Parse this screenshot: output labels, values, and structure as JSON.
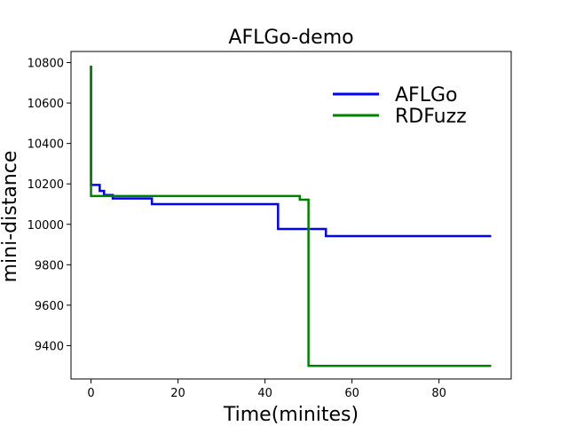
{
  "chart_data": {
    "type": "line",
    "title": "AFLGo-demo",
    "xlabel": "Time(minites)",
    "ylabel": "mini-distance",
    "xlim": [
      -4.6,
      96.6
    ],
    "ylim": [
      9235,
      10855
    ],
    "xticks": [
      0,
      20,
      40,
      60,
      80
    ],
    "yticks": [
      9400,
      9600,
      9800,
      10000,
      10200,
      10400,
      10600,
      10800
    ],
    "grid": false,
    "legend_position": "upper-right",
    "series": [
      {
        "name": "AFLGo",
        "color": "#0000ff",
        "step": true,
        "x": [
          0,
          0,
          2,
          3,
          5,
          14,
          43,
          54,
          92
        ],
        "y": [
          10785,
          10195,
          10165,
          10145,
          10128,
          10100,
          9977,
          9942,
          9942
        ]
      },
      {
        "name": "RDFuzz",
        "color": "#008000",
        "step": true,
        "x": [
          0,
          0,
          48,
          50,
          92
        ],
        "y": [
          10785,
          10140,
          10122,
          9300,
          9300
        ]
      }
    ]
  }
}
